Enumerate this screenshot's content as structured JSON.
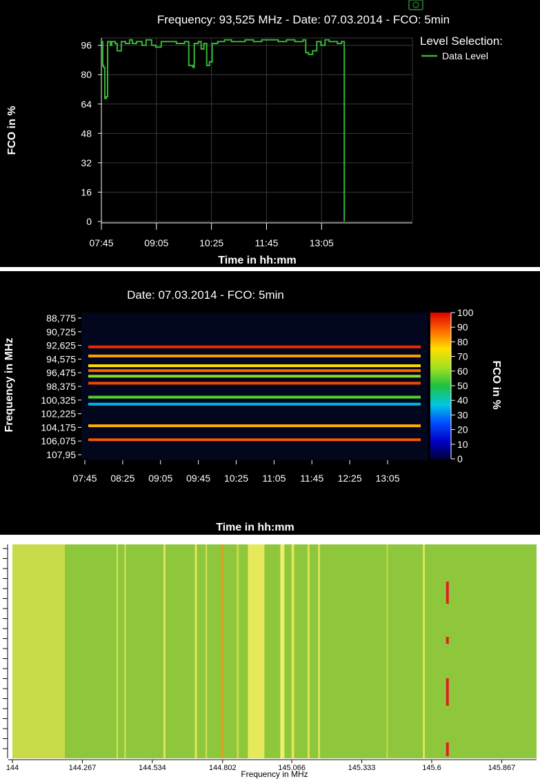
{
  "chart_data": [
    {
      "type": "line",
      "title": "Frequency: 93,525 MHz - Date: 07.03.2014 - FCO: 5min",
      "xlabel": "Time in hh:mm",
      "ylabel": "FCO in %",
      "x_ticks": [
        "07:45",
        "09:05",
        "10:25",
        "11:45",
        "13:05"
      ],
      "y_ticks": [
        "0",
        "16",
        "32",
        "48",
        "64",
        "80",
        "96"
      ],
      "ylim": [
        0,
        100
      ],
      "legend_title": "Level Selection:",
      "grid": true,
      "series": [
        {
          "name": "Data Level",
          "color": "#35b735",
          "x": [
            "07:45",
            "07:47",
            "07:48",
            "07:50",
            "07:52",
            "07:54",
            "07:58",
            "08:00",
            "08:05",
            "08:08",
            "08:14",
            "08:20",
            "08:26",
            "08:30",
            "08:36",
            "08:44",
            "08:50",
            "08:58",
            "09:04",
            "09:12",
            "09:22",
            "09:34",
            "09:46",
            "09:52",
            "09:58",
            "10:00",
            "10:06",
            "10:10",
            "10:14",
            "10:18",
            "10:22",
            "10:26",
            "10:34",
            "10:44",
            "10:54",
            "11:04",
            "11:14",
            "11:26",
            "11:38",
            "11:50",
            "12:02",
            "12:14",
            "12:26",
            "12:38",
            "12:42",
            "12:46",
            "12:52",
            "12:58",
            "13:04",
            "13:10",
            "13:16",
            "13:22",
            "13:28",
            "13:34",
            "13:38"
          ],
          "values": [
            98,
            85,
            84,
            67,
            68,
            98,
            96,
            98,
            97,
            93,
            98,
            97,
            99,
            97,
            98,
            96,
            99,
            96,
            95,
            98,
            98,
            97,
            98,
            85,
            84,
            97,
            98,
            94,
            97,
            85,
            87,
            97,
            98,
            99,
            98,
            98,
            99,
            98,
            99,
            99,
            98,
            99,
            98,
            99,
            92,
            91,
            93,
            98,
            96,
            99,
            98,
            98,
            97,
            98,
            0
          ]
        }
      ]
    },
    {
      "type": "heatmap",
      "title": "Date: 07.03.2014 - FCO: 5min",
      "xlabel": "Time in hh:mm",
      "ylabel": "Frequency in MHz",
      "x_ticks": [
        "07:45",
        "08:25",
        "09:05",
        "09:45",
        "10:25",
        "11:05",
        "11:45",
        "12:25",
        "13:05"
      ],
      "y_ticks": [
        "88,775",
        "90,725",
        "92,625",
        "94,575",
        "96,475",
        "98,375",
        "100,325",
        "102,225",
        "104,175",
        "106,075",
        "107,95"
      ],
      "colorbar_label": "FCO in %",
      "colorbar_ticks": [
        "100",
        "90",
        "80",
        "70",
        "60",
        "50",
        "40",
        "30",
        "20",
        "10",
        "0"
      ],
      "colorbar_range": [
        0,
        100
      ],
      "bands": [
        {
          "freq": 93.1,
          "level": 95
        },
        {
          "freq": 94.4,
          "level": 82
        },
        {
          "freq": 95.8,
          "level": 75
        },
        {
          "freq": 96.5,
          "level": 88
        },
        {
          "freq": 97.3,
          "level": 60
        },
        {
          "freq": 98.3,
          "level": 92
        },
        {
          "freq": 100.3,
          "level": 55
        },
        {
          "freq": 101.3,
          "level": 35
        },
        {
          "freq": 104.4,
          "level": 80
        },
        {
          "freq": 106.4,
          "level": 90
        }
      ]
    },
    {
      "type": "heatmap",
      "xlabel": "Frequency in MHz",
      "x_ticks": [
        "144",
        "144.267",
        "144.534",
        "144.802",
        "145.066",
        "145.333",
        "145.6",
        "145.867"
      ],
      "xlim": [
        144,
        146
      ]
    }
  ]
}
